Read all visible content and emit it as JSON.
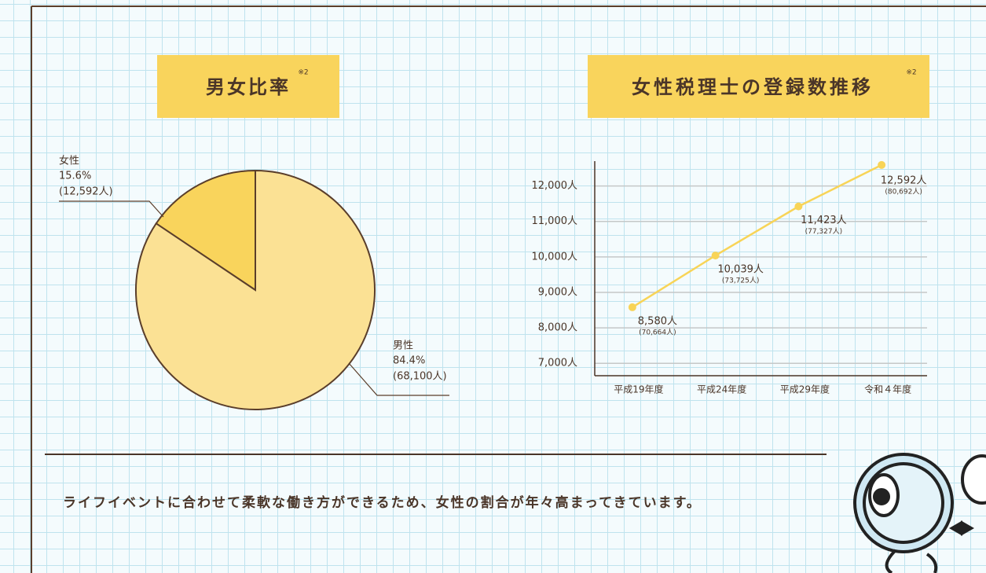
{
  "chart_data": [
    {
      "type": "pie",
      "title": "男女比率",
      "note": "※2",
      "categories": [
        "女性",
        "男性"
      ],
      "values": [
        15.6,
        84.4
      ],
      "value_labels": [
        "15.6%",
        "84.4%"
      ],
      "sub_labels": [
        "(12,592人)",
        "(68,100人)"
      ],
      "colors": [
        "#f9d45c",
        "#fbe194"
      ]
    },
    {
      "type": "line",
      "title": "女性税理士の登録数推移",
      "note": "※2",
      "categories": [
        "平成19年度",
        "平成24年度",
        "平成29年度",
        "令和４年度"
      ],
      "series": [
        {
          "color": "#f8d457",
          "values": [
            8580,
            10039,
            11423,
            12592
          ],
          "value_labels": [
            "8,580人",
            "10,039人",
            "11,423人",
            "12,592人"
          ],
          "sub_labels": [
            "(70,664人)",
            "(73,725人)",
            "(77,327人)",
            "(80,692人)"
          ]
        }
      ],
      "ylim": [
        6650,
        12700
      ],
      "yticks": [
        {
          "value": 7000,
          "label": "7,000人"
        },
        {
          "value": 8000,
          "label": "8,000人"
        },
        {
          "value": 9000,
          "label": "9,000人"
        },
        {
          "value": 10000,
          "label": "10,000人"
        },
        {
          "value": 11000,
          "label": "11,000人"
        },
        {
          "value": 12000,
          "label": "12,000人"
        }
      ],
      "grid": true
    }
  ],
  "caption": "ライフイベントに合わせて柔軟な働き方ができるため、女性の割合が年々高まってきています。"
}
